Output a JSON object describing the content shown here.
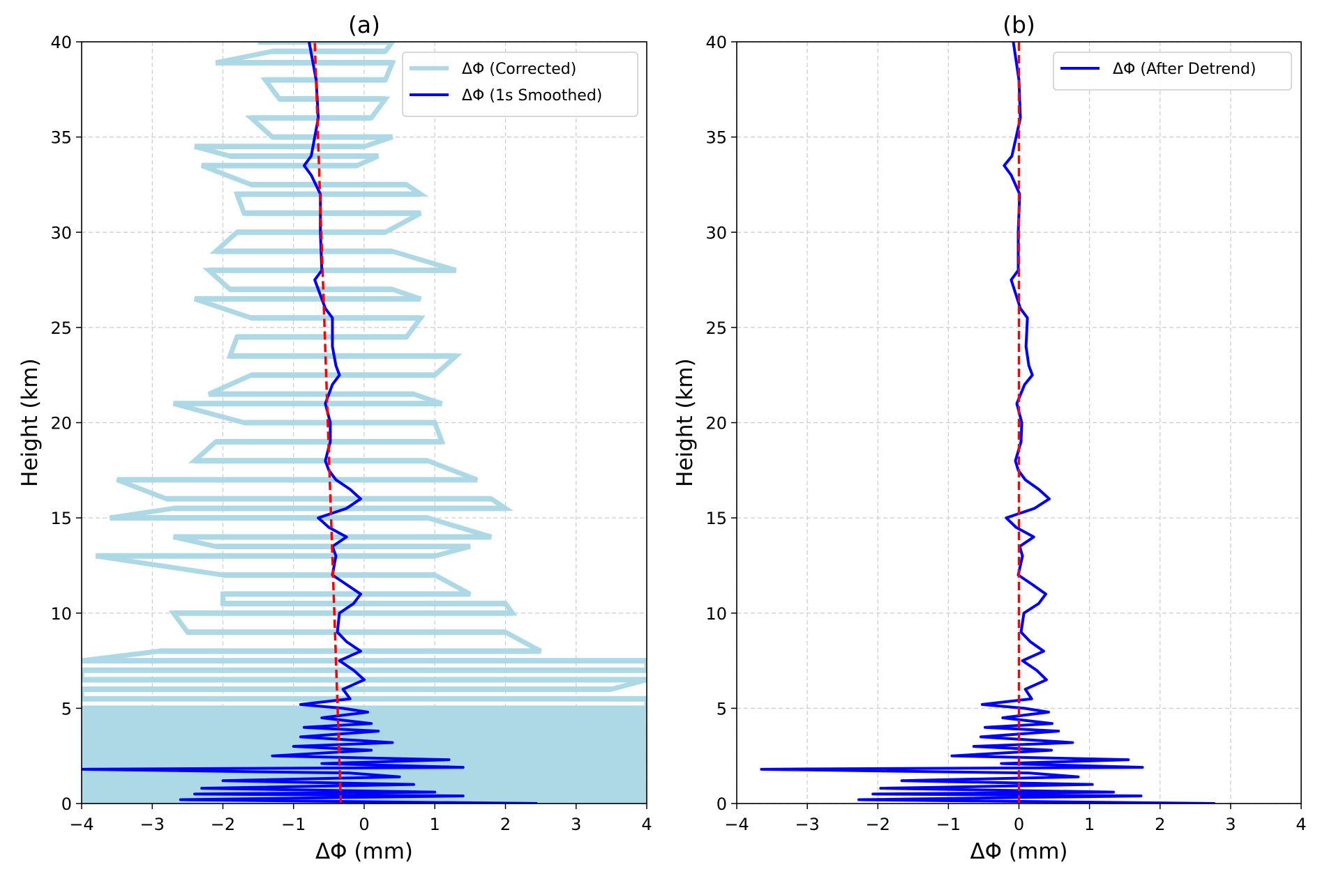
{
  "chart_data": [
    {
      "type": "line",
      "title": "(a)",
      "xlabel": "ΔΦ (mm)",
      "ylabel": "Height (km)",
      "xlim": [
        -4,
        4
      ],
      "ylim": [
        0,
        40
      ],
      "xticks": [
        "−4",
        "−3",
        "−2",
        "−1",
        "0",
        "1",
        "2",
        "3",
        "4"
      ],
      "yticks": [
        "0",
        "5",
        "10",
        "15",
        "20",
        "25",
        "30",
        "35",
        "40"
      ],
      "grid": true,
      "legend_placement": "top-right",
      "series": [
        {
          "name": "ΔΦ (Corrected)",
          "color": "#add8e6",
          "envelope_height_min_max": [
            [
              40,
              -1.5,
              0.4
            ],
            [
              39.5,
              -1.3,
              0.3
            ],
            [
              38.9,
              -2.1,
              0.4
            ],
            [
              38,
              -1.4,
              0.3
            ],
            [
              37,
              -1.2,
              0.3
            ],
            [
              36,
              -1.6,
              0.1
            ],
            [
              35,
              -1.3,
              0.4
            ],
            [
              34.5,
              -2.4,
              0.0
            ],
            [
              34,
              -1.9,
              0.2
            ],
            [
              33.5,
              -2.3,
              -0.1
            ],
            [
              32.5,
              -1.6,
              0.6
            ],
            [
              32,
              -1.8,
              0.8
            ],
            [
              31,
              -1.7,
              0.8
            ],
            [
              30,
              -1.8,
              0.3
            ],
            [
              29,
              -2.1,
              0.4
            ],
            [
              28,
              -2.2,
              1.3
            ],
            [
              27,
              -1.9,
              0.4
            ],
            [
              26.5,
              -2.4,
              0.8
            ],
            [
              25.5,
              -1.6,
              0.8
            ],
            [
              24.5,
              -1.8,
              0.6
            ],
            [
              23.5,
              -1.9,
              1.3
            ],
            [
              22.5,
              -1.6,
              1.0
            ],
            [
              21.5,
              -2.2,
              0.7
            ],
            [
              21,
              -2.7,
              1.1
            ],
            [
              20,
              -1.7,
              1.0
            ],
            [
              19,
              -2.1,
              1.1
            ],
            [
              18,
              -2.4,
              0.9
            ],
            [
              17,
              -3.5,
              1.6
            ],
            [
              16,
              -2.8,
              1.8
            ],
            [
              15.5,
              -2.7,
              2.0
            ],
            [
              15,
              -3.6,
              0.9
            ],
            [
              14,
              -2.7,
              1.8
            ],
            [
              13.5,
              -2.1,
              1.5
            ],
            [
              13,
              -3.8,
              1.0
            ],
            [
              12,
              -2.0,
              1.0
            ],
            [
              11,
              -2.0,
              1.5
            ],
            [
              10.5,
              -2.0,
              2.0
            ],
            [
              10,
              -2.7,
              2.1
            ],
            [
              9,
              -2.5,
              2.0
            ],
            [
              8,
              -2.9,
              2.5
            ],
            [
              7.5,
              -4,
              4
            ],
            [
              7,
              -4,
              4
            ],
            [
              6.5,
              -4,
              4
            ],
            [
              6,
              -4,
              3.5
            ],
            [
              5.5,
              -4,
              4
            ],
            [
              5,
              -4,
              4
            ],
            [
              4.5,
              -4,
              4
            ],
            [
              4,
              -4,
              4
            ],
            [
              3.5,
              -4,
              4
            ],
            [
              3,
              -4,
              4
            ],
            [
              2.5,
              -4,
              4
            ],
            [
              2,
              -4,
              4
            ],
            [
              1.5,
              -4,
              4
            ],
            [
              1,
              -4,
              4
            ],
            [
              0.5,
              -4,
              4
            ],
            [
              0,
              -4,
              4
            ]
          ]
        },
        {
          "name": "ΔΦ (1s Smoothed)",
          "color": "#0000ff",
          "points_height_value": [
            [
              40,
              -0.78
            ],
            [
              38,
              -0.68
            ],
            [
              36,
              -0.65
            ],
            [
              35,
              -0.7
            ],
            [
              34,
              -0.75
            ],
            [
              33.5,
              -0.85
            ],
            [
              33,
              -0.75
            ],
            [
              32,
              -0.62
            ],
            [
              30,
              -0.62
            ],
            [
              28,
              -0.6
            ],
            [
              27.5,
              -0.7
            ],
            [
              26,
              -0.55
            ],
            [
              25.5,
              -0.45
            ],
            [
              24,
              -0.45
            ],
            [
              23,
              -0.4
            ],
            [
              22.5,
              -0.35
            ],
            [
              22,
              -0.45
            ],
            [
              21,
              -0.55
            ],
            [
              20,
              -0.48
            ],
            [
              19,
              -0.48
            ],
            [
              18,
              -0.55
            ],
            [
              17.5,
              -0.5
            ],
            [
              17,
              -0.4
            ],
            [
              16.5,
              -0.2
            ],
            [
              16,
              -0.05
            ],
            [
              15.5,
              -0.25
            ],
            [
              15,
              -0.65
            ],
            [
              14.5,
              -0.5
            ],
            [
              14,
              -0.25
            ],
            [
              13.5,
              -0.45
            ],
            [
              13,
              -0.4
            ],
            [
              12,
              -0.45
            ],
            [
              11.5,
              -0.25
            ],
            [
              11,
              -0.05
            ],
            [
              10.5,
              -0.15
            ],
            [
              10,
              -0.35
            ],
            [
              9,
              -0.38
            ],
            [
              8.5,
              -0.25
            ],
            [
              8,
              -0.05
            ],
            [
              7.5,
              -0.35
            ],
            [
              7,
              -0.15
            ],
            [
              6.5,
              0.0
            ],
            [
              6,
              -0.3
            ],
            [
              5.5,
              -0.2
            ],
            [
              5.2,
              -0.9
            ],
            [
              5,
              -0.3
            ],
            [
              4.8,
              0.05
            ],
            [
              4.5,
              -0.6
            ],
            [
              4.2,
              0.1
            ],
            [
              4,
              -0.85
            ],
            [
              3.8,
              0.2
            ],
            [
              3.5,
              -0.9
            ],
            [
              3.2,
              0.4
            ],
            [
              3,
              -1.0
            ],
            [
              2.8,
              0.1
            ],
            [
              2.5,
              -1.3
            ],
            [
              2.3,
              1.2
            ],
            [
              2.1,
              -0.6
            ],
            [
              1.9,
              1.4
            ],
            [
              1.8,
              -4.0
            ],
            [
              1.6,
              -0.2
            ],
            [
              1.4,
              0.5
            ],
            [
              1.2,
              -2.0
            ],
            [
              1.0,
              0.7
            ],
            [
              0.8,
              -2.3
            ],
            [
              0.6,
              1.0
            ],
            [
              0.5,
              -2.4
            ],
            [
              0.4,
              1.4
            ],
            [
              0.2,
              -2.6
            ],
            [
              0,
              2.45
            ]
          ]
        },
        {
          "color": "#ff0000",
          "style": "dashed",
          "points_height_value": [
            [
              0,
              -0.33
            ],
            [
              40,
              -0.7
            ]
          ]
        }
      ]
    },
    {
      "type": "line",
      "title": "(b)",
      "xlabel": "ΔΦ (mm)",
      "ylabel": "Height (km)",
      "xlim": [
        -4,
        4
      ],
      "ylim": [
        0,
        40
      ],
      "xticks": [
        "−4",
        "−3",
        "−2",
        "−1",
        "0",
        "1",
        "2",
        "3",
        "4"
      ],
      "yticks": [
        "0",
        "5",
        "10",
        "15",
        "20",
        "25",
        "30",
        "35",
        "40"
      ],
      "grid": true,
      "legend_placement": "top-right",
      "series": [
        {
          "name": "ΔΦ (After Detrend)",
          "color": "#0000ff",
          "points_height_value": [
            [
              40,
              -0.08
            ],
            [
              38,
              0.0
            ],
            [
              36,
              0.02
            ],
            [
              35,
              -0.04
            ],
            [
              34,
              -0.1
            ],
            [
              33.5,
              -0.21
            ],
            [
              33,
              -0.11
            ],
            [
              32,
              0.01
            ],
            [
              30,
              -0.01
            ],
            [
              28,
              -0.01
            ],
            [
              27.5,
              -0.11
            ],
            [
              26,
              0.02
            ],
            [
              25.5,
              0.12
            ],
            [
              24,
              0.1
            ],
            [
              23,
              0.14
            ],
            [
              22.5,
              0.19
            ],
            [
              22,
              0.08
            ],
            [
              21,
              -0.03
            ],
            [
              20,
              0.04
            ],
            [
              19,
              0.03
            ],
            [
              18,
              -0.05
            ],
            [
              17.5,
              -0.01
            ],
            [
              17,
              0.09
            ],
            [
              16.5,
              0.28
            ],
            [
              16,
              0.43
            ],
            [
              15.5,
              0.22
            ],
            [
              15,
              -0.18
            ],
            [
              14.5,
              -0.04
            ],
            [
              14,
              0.21
            ],
            [
              13.5,
              0.01
            ],
            [
              13,
              0.05
            ],
            [
              12,
              -0.01
            ],
            [
              11.5,
              0.19
            ],
            [
              11,
              0.38
            ],
            [
              10.5,
              0.28
            ],
            [
              10,
              0.07
            ],
            [
              9,
              0.03
            ],
            [
              8.5,
              0.16
            ],
            [
              8,
              0.35
            ],
            [
              7.5,
              0.05
            ],
            [
              7,
              0.25
            ],
            [
              6.5,
              0.39
            ],
            [
              6,
              0.09
            ],
            [
              5.5,
              0.18
            ],
            [
              5.2,
              -0.52
            ],
            [
              5,
              0.08
            ],
            [
              4.8,
              0.42
            ],
            [
              4.5,
              -0.23
            ],
            [
              4.2,
              0.47
            ],
            [
              4,
              -0.48
            ],
            [
              3.8,
              0.56
            ],
            [
              3.5,
              -0.54
            ],
            [
              3.2,
              0.76
            ],
            [
              3,
              -0.64
            ],
            [
              2.8,
              0.46
            ],
            [
              2.5,
              -0.95
            ],
            [
              2.3,
              1.55
            ],
            [
              2.1,
              -0.25
            ],
            [
              1.9,
              1.75
            ],
            [
              1.8,
              -3.65
            ],
            [
              1.6,
              0.15
            ],
            [
              1.4,
              0.84
            ],
            [
              1.2,
              -1.66
            ],
            [
              1.0,
              1.04
            ],
            [
              0.8,
              -1.96
            ],
            [
              0.6,
              1.34
            ],
            [
              0.5,
              -2.07
            ],
            [
              0.4,
              1.73
            ],
            [
              0.2,
              -2.27
            ],
            [
              0,
              2.78
            ]
          ]
        },
        {
          "color": "#ff0000",
          "style": "dashed",
          "points_height_value": [
            [
              0,
              0
            ],
            [
              40,
              0
            ]
          ]
        }
      ]
    }
  ]
}
